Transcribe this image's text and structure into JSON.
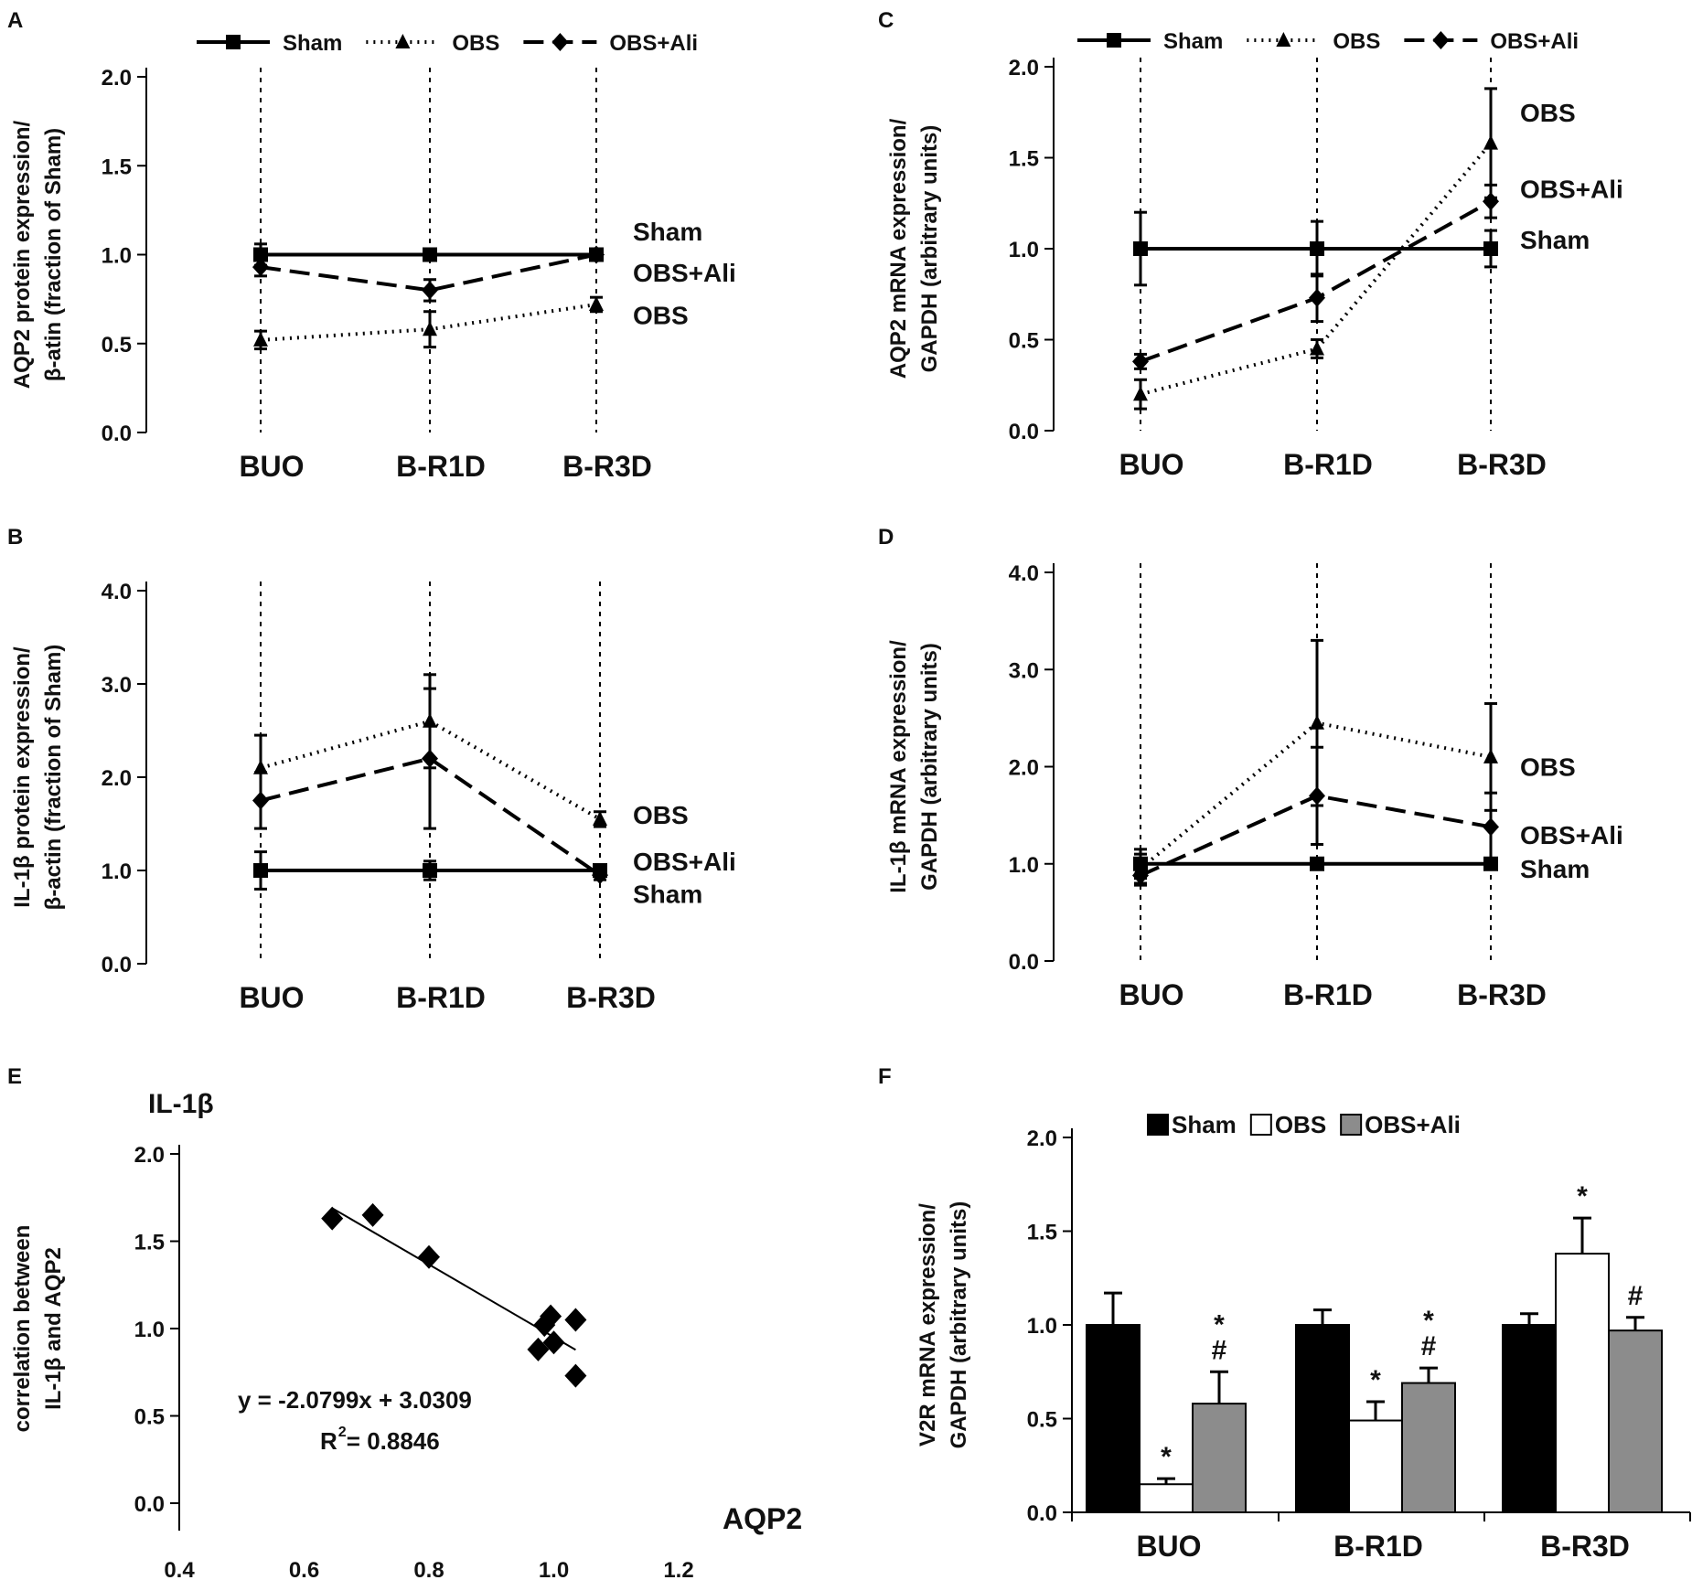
{
  "figure": {
    "panels": {
      "A": {
        "letter": "A"
      },
      "B": {
        "letter": "B"
      },
      "C": {
        "letter": "C"
      },
      "D": {
        "letter": "D"
      },
      "E": {
        "letter": "E"
      },
      "F": {
        "letter": "F"
      }
    }
  },
  "chart_data": [
    {
      "id": "A",
      "type": "line",
      "categories": [
        "BUO",
        "B-R1D",
        "B-R3D"
      ],
      "ylabel": [
        "AQP2 protein expression/",
        "β-atin  (fraction of Sham)"
      ],
      "ylim": [
        0,
        2.0
      ],
      "yticks": [
        "0.0",
        "0.5",
        "1.0",
        "1.5",
        "2.0"
      ],
      "legend": [
        "Sham",
        "OBS",
        "OBS+Ali"
      ],
      "series": [
        {
          "name": "Sham",
          "style": "solid",
          "marker": "square",
          "values": [
            1.0,
            1.0,
            1.0
          ],
          "errors": [
            0.06,
            0.03,
            0.02
          ]
        },
        {
          "name": "OBS",
          "style": "dotted",
          "marker": "triangle",
          "values": [
            0.52,
            0.58,
            0.72
          ],
          "errors": [
            0.05,
            0.1,
            0.04
          ]
        },
        {
          "name": "OBS+Ali",
          "style": "dashed",
          "marker": "diamond",
          "values": [
            0.93,
            0.8,
            1.0
          ],
          "errors": [
            0.05,
            0.06,
            0.02
          ]
        }
      ],
      "end_labels": [
        {
          "text": "Sham",
          "value": 1.13
        },
        {
          "text": "OBS+Ali",
          "value": 0.9
        },
        {
          "text": "OBS",
          "value": 0.66
        }
      ]
    },
    {
      "id": "B",
      "type": "line",
      "categories": [
        "BUO",
        "B-R1D",
        "B-R3D"
      ],
      "ylabel": [
        "IL-1β protein expression/",
        "β-actin  (fraction of Sham)"
      ],
      "ylim": [
        0,
        4.0
      ],
      "yticks": [
        "0.0",
        "1.0",
        "2.0",
        "3.0",
        "4.0"
      ],
      "series": [
        {
          "name": "Sham",
          "style": "solid",
          "marker": "square",
          "values": [
            1.0,
            1.0,
            1.0
          ],
          "errors": [
            0.2,
            0.1,
            0.05
          ]
        },
        {
          "name": "OBS",
          "style": "dotted",
          "marker": "triangle",
          "values": [
            2.1,
            2.6,
            1.55
          ],
          "errors": [
            0.35,
            0.5,
            0.08
          ]
        },
        {
          "name": "OBS+Ali",
          "style": "dashed",
          "marker": "diamond",
          "values": [
            1.75,
            2.2,
            0.95
          ],
          "errors": [
            0.3,
            0.75,
            0.05
          ]
        }
      ],
      "end_labels": [
        {
          "text": "OBS",
          "value": 1.6
        },
        {
          "text": "OBS+Ali",
          "value": 1.1
        },
        {
          "text": "Sham",
          "value": 0.75
        }
      ]
    },
    {
      "id": "C",
      "type": "line",
      "categories": [
        "BUO",
        "B-R1D",
        "B-R3D"
      ],
      "ylabel": [
        "AQP2 mRNA expression/",
        "GAPDH  (arbitrary units)"
      ],
      "ylim": [
        0,
        2.0
      ],
      "yticks": [
        "0.0",
        "0.5",
        "1.0",
        "1.5",
        "2.0"
      ],
      "legend": [
        "Sham",
        "OBS",
        "OBS+Ali"
      ],
      "series": [
        {
          "name": "Sham",
          "style": "solid",
          "marker": "square",
          "values": [
            1.0,
            1.0,
            1.0
          ],
          "errors": [
            0.2,
            0.15,
            0.1
          ]
        },
        {
          "name": "OBS",
          "style": "dotted",
          "marker": "triangle",
          "values": [
            0.2,
            0.45,
            1.58
          ],
          "errors": [
            0.08,
            0.05,
            0.3
          ]
        },
        {
          "name": "OBS+Ali",
          "style": "dashed",
          "marker": "diamond",
          "values": [
            0.38,
            0.73,
            1.26
          ],
          "errors": [
            0.04,
            0.13,
            0.09
          ]
        }
      ],
      "end_labels": [
        {
          "text": "OBS",
          "value": 1.75
        },
        {
          "text": "OBS+Ali",
          "value": 1.33
        },
        {
          "text": "Sham",
          "value": 1.05
        }
      ]
    },
    {
      "id": "D",
      "type": "line",
      "categories": [
        "BUO",
        "B-R1D",
        "B-R3D"
      ],
      "ylabel": [
        "IL-1β mRNA expression/",
        "GAPDH (arbitrary units)"
      ],
      "ylim": [
        0,
        4.0
      ],
      "yticks": [
        "0.0",
        "1.0",
        "2.0",
        "3.0",
        "4.0"
      ],
      "series": [
        {
          "name": "Sham",
          "style": "solid",
          "marker": "square",
          "values": [
            1.0,
            1.0,
            1.0
          ],
          "errors": [
            0.15,
            0.05,
            0.05
          ]
        },
        {
          "name": "OBS",
          "style": "dotted",
          "marker": "triangle",
          "values": [
            0.95,
            2.45,
            2.1
          ],
          "errors": [
            0.15,
            0.85,
            0.55
          ]
        },
        {
          "name": "OBS+Ali",
          "style": "dashed",
          "marker": "diamond",
          "values": [
            0.88,
            1.7,
            1.38
          ],
          "errors": [
            0.1,
            0.5,
            0.35
          ]
        }
      ],
      "end_labels": [
        {
          "text": "OBS",
          "value": 2.0
        },
        {
          "text": "OBS+Ali",
          "value": 1.3
        },
        {
          "text": "Sham",
          "value": 0.95
        }
      ]
    },
    {
      "id": "E",
      "type": "scatter",
      "title": "IL-1β",
      "xlabel": "AQP2",
      "ylabel": [
        "correlation between",
        "IL-1β and AQP2"
      ],
      "xlim": [
        0.4,
        1.2
      ],
      "ylim": [
        0,
        2.0
      ],
      "xticks": [
        "0.4",
        "0.6",
        "0.8",
        "1.0",
        "1.2"
      ],
      "yticks": [
        "0.0",
        "0.5",
        "1.0",
        "1.5",
        "2.0"
      ],
      "points": [
        [
          0.645,
          1.63
        ],
        [
          0.71,
          1.65
        ],
        [
          0.8,
          1.41
        ],
        [
          0.975,
          0.88
        ],
        [
          0.985,
          1.02
        ],
        [
          0.995,
          1.07
        ],
        [
          1.0,
          0.92
        ],
        [
          1.035,
          1.05
        ],
        [
          1.035,
          0.73
        ]
      ],
      "fit": {
        "slope": -2.0799,
        "intercept": 3.0309,
        "x_range": [
          0.645,
          1.035
        ]
      },
      "equation": "y = -2.0799x + 3.0309",
      "r2_label": "R",
      "r2_sup": "2",
      "r2_value": " = 0.8846"
    },
    {
      "id": "F",
      "type": "bar",
      "categories": [
        "BUO",
        "B-R1D",
        "B-R3D"
      ],
      "ylabel": [
        "V2R mRNA expression/",
        "GAPDH  (arbitrary units)"
      ],
      "ylim": [
        0,
        2.0
      ],
      "yticks": [
        "0.0",
        "0.5",
        "1.0",
        "1.5",
        "2.0"
      ],
      "legend": [
        "Sham",
        "OBS",
        "OBS+Ali"
      ],
      "series": [
        {
          "name": "Sham",
          "fill": "#000000",
          "values": [
            1.0,
            1.0,
            1.0
          ],
          "errors": [
            0.17,
            0.08,
            0.06
          ],
          "marks": [
            "",
            "",
            ""
          ]
        },
        {
          "name": "OBS",
          "fill": "#ffffff",
          "values": [
            0.15,
            0.49,
            1.38
          ],
          "errors": [
            0.03,
            0.1,
            0.19
          ],
          "marks": [
            "*",
            "*",
            "*"
          ]
        },
        {
          "name": "OBS+Ali",
          "fill": "#8c8c8c",
          "values": [
            0.58,
            0.69,
            0.97
          ],
          "errors": [
            0.17,
            0.08,
            0.07
          ],
          "marks": [
            "*\n#",
            "*\n#",
            "#"
          ]
        }
      ]
    }
  ]
}
